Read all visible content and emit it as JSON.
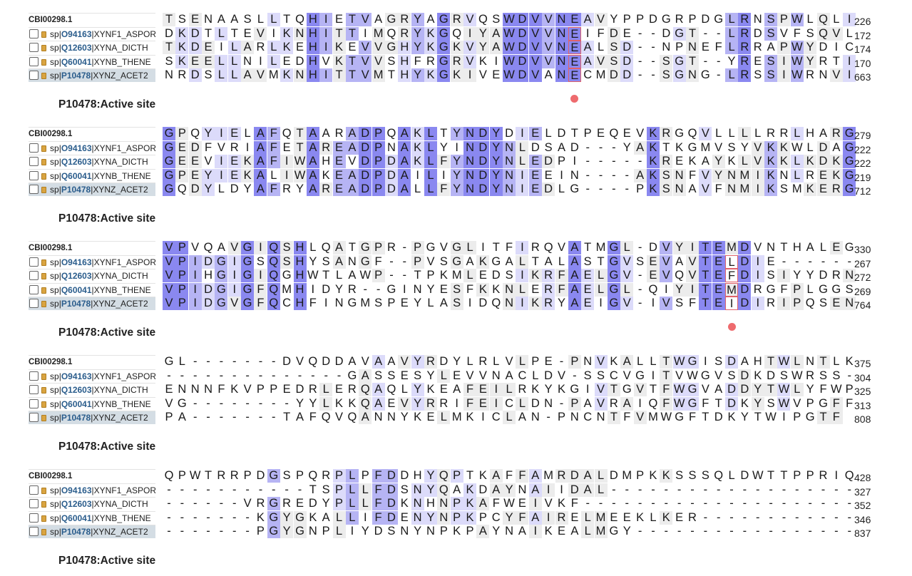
{
  "colors": {
    "highlight_strong": "#8a88f0",
    "highlight_medium": "#b6b4f4",
    "highlight_light": "#dcdbfa",
    "highlight_faint": "#ececec",
    "active_site_marker": "#ee6b6e",
    "selected_row": "#d4dde4",
    "accession_text": "#2b5d8c"
  },
  "rows": [
    {
      "type": "consensus",
      "label": "CBI00298.1"
    },
    {
      "type": "seq",
      "db": "sp",
      "acc": "O94163",
      "name": "XYNF1_ASPOR",
      "selected": false
    },
    {
      "type": "seq",
      "db": "sp",
      "acc": "Q12603",
      "name": "XYNA_DICTH",
      "selected": false
    },
    {
      "type": "seq",
      "db": "sp",
      "acc": "Q60041",
      "name": "XYNB_THENE",
      "selected": false
    },
    {
      "type": "seq",
      "db": "sp",
      "acc": "P10478",
      "name": "XYNZ_ACET2",
      "selected": true
    }
  ],
  "track_label": "P10478:Active site",
  "blocks": [
    {
      "seqs": [
        "TSENAASLLTQHIETVAGRYAGRVQSWDVVNEAVYPPDGRPDGLRNSPWLQLI",
        "DKDTLTEVIKNHITTIMQRYKGQIYAWDVVNEIFDE--DGT--LRDSVFSQVL",
        "TKDEILARLKEHIKEVVGHYKGKVYAWDVVNEALSD--NPNEFLRRAPWYDIC",
        "SKEELLNILEDHVKTVVSHFRGRVKIWDVVNEAVSD--SGT--YRESIWYRTI",
        "NRDSLLAVMKNHITTVMTHYKGKIVEWDVANECMDD--SGNG-LRSSIWRNVI"
      ],
      "ends": [
        226,
        172,
        174,
        170,
        663
      ],
      "boxed_col": 31,
      "dot_col": 31
    },
    {
      "seqs": [
        "GPQYIELAFQTAARADPQAKLTYNDYDIELDTPEQEVKRGQVLLLLRRLHARG",
        "GEDFVRIAFETAREADPNAKLYINDYNLDSAD---YAKTKGMVSYVKKWLDAG",
        "GEEVIEKAFIWAHEVDPDAKLFYNDYNLEDPI-----KREKAYKLVKKLKDKG",
        "GPEYIEKALIWAKEADPDAILIYNDYNIEEIN----AKSNFVYNMIKNLREKG",
        "GQDYLDYAFRYAREADPDALLFYNDYNIEDLG----PKSNAVFNMIKSMKERG"
      ],
      "ends": [
        279,
        222,
        222,
        219,
        712
      ],
      "boxed_col": -1,
      "dot_col": -1
    },
    {
      "seqs": [
        "VPVQAVGIQSHLQATGPR-PGVGLITFIRQVATMGL-DVYITEMDVNTHALEG",
        "VPIDGIGSQSHYSANGF--PVSGAKGALTALASTGVSEVAVTELDIE------",
        "VPIHGIGIQGHWTLAWP--TPKMLEDSIKRFAELGV-EVQVTEFDISIYYDRN",
        "VPIDGIGFQMHIDYR--GINYESFKKNLERFAELGL-QIYITEMDRGFPLGGS",
        "VPIDGVGFQCHFINGMSPEYLASIDQNIKRYAEIGV-IVSFTEIDIRIPQSEN"
      ],
      "ends": [
        330,
        267,
        272,
        269,
        764
      ],
      "boxed_col": 43,
      "dot_col": 43
    },
    {
      "seqs": [
        "GL-------DVQDDAVAAVYRDYLRLVLPE-PNVKALLTWGISDAHTWLNTLK",
        "--------------GASSESYLEVVNACLDV-SSCVGITVWGVSDKDSWRSS-",
        "ENNNFKVPPEDRLERQAQLYKEAFEILRKYKGIVTGVTFWGVADDYTWLYFWP",
        "VG--------YYLKKQAEVYRRIFEICLDN-PAVRAIQFWGFTDKYSWVPGFF",
        "PA-------TAFQVQANNYKELMKICLAN-PNCNTFVMWGFTDKYTWIPGTF"
      ],
      "ends": [
        375,
        304,
        325,
        313,
        808
      ],
      "boxed_col": -1,
      "dot_col": -1
    },
    {
      "seqs": [
        "QPWTRRPDGSPQRPLPFDDHYQPTKAFFAMRDALDMPKKSSSQLDWTTPPRIQ",
        "-----------TSPLLFDSNYQAKDAYNAIIDAL-------------------",
        "------VRGREDYPLLFDKNHNPKAFWEIVKF---------------------",
        "-------KGYGKALLIFDENYNPKPCYFAIRELMEEKLKER------------",
        "-------PGYGNPLIYDSNYNPKPAYNAIKEALMGY-----------------"
      ],
      "ends": [
        428,
        327,
        352,
        346,
        837
      ],
      "boxed_col": -1,
      "dot_col": -1
    }
  ]
}
